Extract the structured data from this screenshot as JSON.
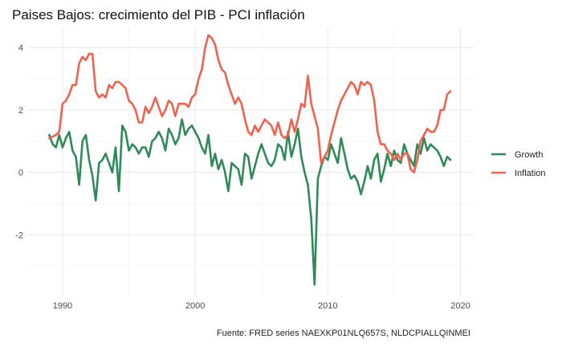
{
  "chart_data": {
    "type": "line",
    "title": "Paises Bajos: crecimiento del PIB - PCI inflación",
    "caption": "Fuente: FRED series NAEXKP01NLQ657S, NLDCPIALLQINMEI",
    "xlabel": "",
    "ylabel": "",
    "xlim": [
      1987.4,
      2021.0
    ],
    "ylim": [
      -3.95,
      4.65
    ],
    "x_ticks": [
      1990,
      2000,
      2010,
      2020
    ],
    "y_ticks": [
      -2,
      0,
      2,
      4
    ],
    "grid": true,
    "legend_position": "right",
    "series": [
      {
        "name": "Growth",
        "color": "#2e8b57",
        "points": [
          [
            1989.0,
            1.2
          ],
          [
            1989.25,
            0.9
          ],
          [
            1989.5,
            0.8
          ],
          [
            1989.75,
            1.2
          ],
          [
            1990.0,
            0.8
          ],
          [
            1990.25,
            1.1
          ],
          [
            1990.5,
            1.3
          ],
          [
            1990.75,
            0.7
          ],
          [
            1991.0,
            0.5
          ],
          [
            1991.25,
            -0.4
          ],
          [
            1991.5,
            1.0
          ],
          [
            1991.75,
            1.2
          ],
          [
            1992.0,
            0.4
          ],
          [
            1992.25,
            -0.1
          ],
          [
            1992.5,
            -0.9
          ],
          [
            1992.75,
            0.3
          ],
          [
            1993.0,
            0.4
          ],
          [
            1993.25,
            0.6
          ],
          [
            1993.5,
            0.3
          ],
          [
            1993.75,
            0.0
          ],
          [
            1994.0,
            0.8
          ],
          [
            1994.25,
            -0.6
          ],
          [
            1994.5,
            1.5
          ],
          [
            1994.75,
            1.3
          ],
          [
            1995.0,
            0.7
          ],
          [
            1995.25,
            0.9
          ],
          [
            1995.5,
            0.8
          ],
          [
            1995.75,
            0.6
          ],
          [
            1996.0,
            0.8
          ],
          [
            1996.25,
            0.8
          ],
          [
            1996.5,
            0.5
          ],
          [
            1996.75,
            1.0
          ],
          [
            1997.0,
            1.1
          ],
          [
            1997.25,
            1.3
          ],
          [
            1997.5,
            1.1
          ],
          [
            1997.75,
            0.7
          ],
          [
            1998.0,
            1.4
          ],
          [
            1998.25,
            1.2
          ],
          [
            1998.5,
            0.9
          ],
          [
            1998.75,
            1.1
          ],
          [
            1999.0,
            1.7
          ],
          [
            1999.25,
            1.2
          ],
          [
            1999.5,
            1.4
          ],
          [
            1999.75,
            1.5
          ],
          [
            2000.0,
            1.3
          ],
          [
            2000.25,
            1.1
          ],
          [
            2000.5,
            0.8
          ],
          [
            2000.75,
            0.6
          ],
          [
            2001.0,
            1.2
          ],
          [
            2001.25,
            0.2
          ],
          [
            2001.5,
            0.6
          ],
          [
            2001.75,
            0.1
          ],
          [
            2002.0,
            0.4
          ],
          [
            2002.25,
            0.0
          ],
          [
            2002.5,
            -0.6
          ],
          [
            2002.75,
            0.3
          ],
          [
            2003.0,
            0.2
          ],
          [
            2003.25,
            0.1
          ],
          [
            2003.5,
            -0.4
          ],
          [
            2003.75,
            0.6
          ],
          [
            2004.0,
            0.5
          ],
          [
            2004.25,
            -0.2
          ],
          [
            2004.5,
            0.2
          ],
          [
            2004.75,
            0.6
          ],
          [
            2005.0,
            0.9
          ],
          [
            2005.25,
            0.6
          ],
          [
            2005.5,
            0.3
          ],
          [
            2005.75,
            0.2
          ],
          [
            2006.0,
            0.4
          ],
          [
            2006.25,
            0.9
          ],
          [
            2006.5,
            0.8
          ],
          [
            2006.75,
            0.4
          ],
          [
            2007.0,
            1.3
          ],
          [
            2007.25,
            0.5
          ],
          [
            2007.5,
            0.9
          ],
          [
            2007.75,
            1.4
          ],
          [
            2008.0,
            0.5
          ],
          [
            2008.25,
            0.0
          ],
          [
            2008.5,
            -0.4
          ],
          [
            2008.75,
            -1.5
          ],
          [
            2009.0,
            -3.6
          ],
          [
            2009.25,
            -0.2
          ],
          [
            2009.5,
            0.2
          ],
          [
            2009.75,
            0.5
          ],
          [
            2010.0,
            0.4
          ],
          [
            2010.25,
            0.9
          ],
          [
            2010.5,
            0.6
          ],
          [
            2010.75,
            0.3
          ],
          [
            2011.0,
            1.1
          ],
          [
            2011.25,
            0.6
          ],
          [
            2011.5,
            0.1
          ],
          [
            2011.75,
            -0.2
          ],
          [
            2012.0,
            -0.1
          ],
          [
            2012.25,
            -0.3
          ],
          [
            2012.5,
            -0.7
          ],
          [
            2012.75,
            -0.3
          ],
          [
            2013.0,
            0.2
          ],
          [
            2013.25,
            -0.2
          ],
          [
            2013.5,
            0.4
          ],
          [
            2013.75,
            0.6
          ],
          [
            2014.0,
            -0.3
          ],
          [
            2014.25,
            0.1
          ],
          [
            2014.5,
            0.6
          ],
          [
            2014.75,
            0.2
          ],
          [
            2015.0,
            0.7
          ],
          [
            2015.25,
            0.4
          ],
          [
            2015.5,
            0.3
          ],
          [
            2015.75,
            0.9
          ],
          [
            2016.0,
            0.6
          ],
          [
            2016.25,
            0.4
          ],
          [
            2016.5,
            0.2
          ],
          [
            2016.75,
            0.9
          ],
          [
            2017.0,
            0.6
          ],
          [
            2017.25,
            1.1
          ],
          [
            2017.5,
            0.7
          ],
          [
            2017.75,
            0.9
          ],
          [
            2018.0,
            0.8
          ],
          [
            2018.25,
            0.7
          ],
          [
            2018.5,
            0.5
          ],
          [
            2018.75,
            0.2
          ],
          [
            2019.0,
            0.5
          ],
          [
            2019.25,
            0.4
          ]
        ]
      },
      {
        "name": "Inflation",
        "color": "#f0624d",
        "points": [
          [
            1989.0,
            1.1
          ],
          [
            1989.5,
            1.2
          ],
          [
            1989.75,
            1.3
          ],
          [
            1990.0,
            2.2
          ],
          [
            1990.25,
            2.3
          ],
          [
            1990.5,
            2.5
          ],
          [
            1990.75,
            2.8
          ],
          [
            1991.0,
            2.8
          ],
          [
            1991.25,
            3.5
          ],
          [
            1991.5,
            3.7
          ],
          [
            1991.75,
            3.6
          ],
          [
            1992.0,
            3.8
          ],
          [
            1992.25,
            3.8
          ],
          [
            1992.5,
            2.6
          ],
          [
            1992.75,
            2.4
          ],
          [
            1993.0,
            2.5
          ],
          [
            1993.25,
            2.4
          ],
          [
            1993.5,
            2.8
          ],
          [
            1993.75,
            2.7
          ],
          [
            1994.0,
            2.9
          ],
          [
            1994.25,
            2.9
          ],
          [
            1994.5,
            2.8
          ],
          [
            1994.75,
            2.7
          ],
          [
            1995.0,
            2.3
          ],
          [
            1995.25,
            2.2
          ],
          [
            1995.5,
            2.0
          ],
          [
            1995.75,
            1.6
          ],
          [
            1996.0,
            1.6
          ],
          [
            1996.25,
            2.1
          ],
          [
            1996.5,
            1.9
          ],
          [
            1996.75,
            2.1
          ],
          [
            1997.0,
            2.4
          ],
          [
            1997.25,
            2.1
          ],
          [
            1997.5,
            1.8
          ],
          [
            1997.75,
            2.0
          ],
          [
            1998.0,
            2.3
          ],
          [
            1998.25,
            2.2
          ],
          [
            1998.5,
            1.8
          ],
          [
            1998.75,
            2.2
          ],
          [
            1999.0,
            2.2
          ],
          [
            1999.25,
            2.2
          ],
          [
            1999.5,
            2.1
          ],
          [
            1999.75,
            2.4
          ],
          [
            2000.0,
            2.5
          ],
          [
            2000.25,
            3.0
          ],
          [
            2000.5,
            3.3
          ],
          [
            2000.75,
            4.0
          ],
          [
            2001.0,
            4.4
          ],
          [
            2001.25,
            4.3
          ],
          [
            2001.5,
            4.1
          ],
          [
            2001.75,
            3.6
          ],
          [
            2002.0,
            3.3
          ],
          [
            2002.25,
            3.2
          ],
          [
            2002.5,
            2.8
          ],
          [
            2002.75,
            2.5
          ],
          [
            2003.0,
            2.2
          ],
          [
            2003.25,
            2.4
          ],
          [
            2003.5,
            2.2
          ],
          [
            2003.75,
            1.7
          ],
          [
            2004.0,
            1.3
          ],
          [
            2004.25,
            1.2
          ],
          [
            2004.5,
            1.5
          ],
          [
            2004.75,
            1.3
          ],
          [
            2005.0,
            1.5
          ],
          [
            2005.25,
            1.7
          ],
          [
            2005.5,
            1.6
          ],
          [
            2005.75,
            1.5
          ],
          [
            2006.0,
            1.2
          ],
          [
            2006.25,
            1.6
          ],
          [
            2006.5,
            1.2
          ],
          [
            2006.75,
            1.1
          ],
          [
            2007.0,
            1.2
          ],
          [
            2007.25,
            1.7
          ],
          [
            2007.5,
            1.3
          ],
          [
            2007.75,
            1.7
          ],
          [
            2008.0,
            2.2
          ],
          [
            2008.25,
            2.1
          ],
          [
            2008.5,
            3.1
          ],
          [
            2008.75,
            2.2
          ],
          [
            2009.0,
            1.8
          ],
          [
            2009.25,
            1.4
          ],
          [
            2009.5,
            0.3
          ],
          [
            2009.75,
            0.5
          ],
          [
            2010.0,
            0.7
          ],
          [
            2010.25,
            1.2
          ],
          [
            2010.5,
            1.6
          ],
          [
            2010.75,
            2.0
          ],
          [
            2011.0,
            2.3
          ],
          [
            2011.25,
            2.5
          ],
          [
            2011.5,
            2.7
          ],
          [
            2011.75,
            2.9
          ],
          [
            2012.0,
            2.8
          ],
          [
            2012.25,
            2.5
          ],
          [
            2012.5,
            2.9
          ],
          [
            2012.75,
            2.8
          ],
          [
            2013.0,
            2.9
          ],
          [
            2013.25,
            2.8
          ],
          [
            2013.5,
            2.3
          ],
          [
            2013.75,
            1.3
          ],
          [
            2014.0,
            0.9
          ],
          [
            2014.25,
            0.9
          ],
          [
            2014.5,
            0.7
          ],
          [
            2014.75,
            0.6
          ],
          [
            2015.0,
            0.4
          ],
          [
            2015.25,
            0.6
          ],
          [
            2015.5,
            0.4
          ],
          [
            2015.75,
            0.6
          ],
          [
            2016.0,
            0.6
          ],
          [
            2016.25,
            0.1
          ],
          [
            2016.5,
            0.0
          ],
          [
            2016.75,
            0.4
          ],
          [
            2017.0,
            1.0
          ],
          [
            2017.25,
            1.2
          ],
          [
            2017.5,
            1.4
          ],
          [
            2017.75,
            1.3
          ],
          [
            2018.0,
            1.3
          ],
          [
            2018.25,
            1.5
          ],
          [
            2018.5,
            2.0
          ],
          [
            2018.75,
            2.0
          ],
          [
            2019.0,
            2.5
          ],
          [
            2019.25,
            2.6
          ]
        ]
      }
    ]
  }
}
